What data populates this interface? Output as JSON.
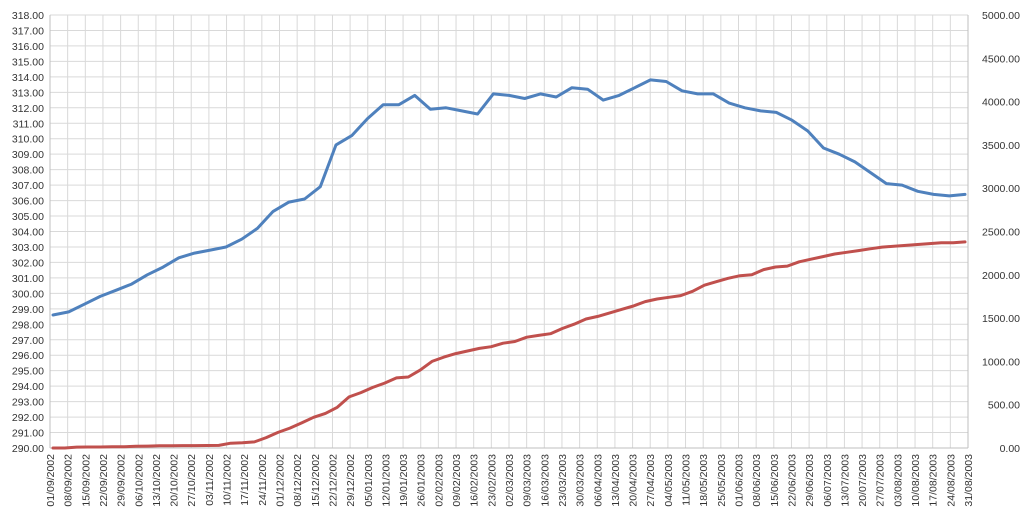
{
  "chart_data": {
    "type": "line",
    "title": "",
    "xlabel": "",
    "ylabel": "",
    "y2label": "",
    "ylim": [
      290,
      318
    ],
    "y2lim": [
      0,
      5000
    ],
    "yticks": [
      "290.00",
      "291.00",
      "292.00",
      "293.00",
      "294.00",
      "295.00",
      "296.00",
      "297.00",
      "298.00",
      "299.00",
      "300.00",
      "301.00",
      "302.00",
      "303.00",
      "304.00",
      "305.00",
      "306.00",
      "307.00",
      "308.00",
      "309.00",
      "310.00",
      "311.00",
      "312.00",
      "313.00",
      "314.00",
      "315.00",
      "316.00",
      "317.00",
      "318.00"
    ],
    "y2ticks": [
      "0.00",
      "500.00",
      "1000.00",
      "1500.00",
      "2000.00",
      "2500.00",
      "3000.00",
      "3500.00",
      "4000.00",
      "4500.00",
      "5000.00"
    ],
    "xticks": [
      "01/09/2002",
      "08/09/2002",
      "15/09/2002",
      "22/09/2002",
      "29/09/2002",
      "06/10/2002",
      "13/10/2002",
      "20/10/2002",
      "27/10/2002",
      "03/11/2002",
      "10/11/2002",
      "17/11/2002",
      "24/11/2002",
      "01/12/2002",
      "08/12/2002",
      "15/12/2002",
      "22/12/2002",
      "29/12/2002",
      "05/01/2003",
      "12/01/2003",
      "19/01/2003",
      "26/01/2003",
      "02/02/2003",
      "09/02/2003",
      "16/02/2003",
      "23/02/2003",
      "02/03/2003",
      "09/03/2003",
      "16/03/2003",
      "23/03/2003",
      "30/03/2003",
      "06/04/2003",
      "13/04/2003",
      "20/04/2003",
      "27/04/2003",
      "04/05/2003",
      "11/05/2003",
      "18/05/2003",
      "25/05/2003",
      "01/06/2003",
      "08/06/2003",
      "15/06/2003",
      "22/06/2003",
      "29/06/2003",
      "06/07/2003",
      "13/07/2003",
      "20/07/2003",
      "27/07/2003",
      "03/08/2003",
      "10/08/2003",
      "17/08/2003",
      "24/08/2003",
      "31/08/2003"
    ],
    "grid": true,
    "legend": "none",
    "series": [
      {
        "axis": "left",
        "color": "#4f81bd",
        "values": [
          298.6,
          298.8,
          299.3,
          299.8,
          300.2,
          300.6,
          301.2,
          301.7,
          302.3,
          302.6,
          302.8,
          303.0,
          303.5,
          304.2,
          305.3,
          305.9,
          306.1,
          306.9,
          309.6,
          310.2,
          311.3,
          312.2,
          312.2,
          312.8,
          311.9,
          312.0,
          311.8,
          311.6,
          312.9,
          312.8,
          312.6,
          312.9,
          312.7,
          313.3,
          313.2,
          312.5,
          312.8,
          313.3,
          313.8,
          313.7,
          313.1,
          312.9,
          312.9,
          312.3,
          312.0,
          311.8,
          311.7,
          311.2,
          310.5,
          309.4,
          309.0,
          308.5,
          307.8,
          307.1,
          307.0,
          306.6,
          306.4,
          306.3,
          306.4
        ]
      },
      {
        "axis": "right",
        "color": "#c0504d",
        "values": [
          0,
          0,
          10,
          12,
          12,
          14,
          15,
          20,
          22,
          25,
          26,
          28,
          28,
          29,
          30,
          55,
          60,
          70,
          120,
          180,
          230,
          290,
          355,
          400,
          470,
          590,
          640,
          700,
          750,
          810,
          820,
          900,
          1000,
          1050,
          1090,
          1120,
          1150,
          1170,
          1210,
          1230,
          1280,
          1300,
          1320,
          1380,
          1430,
          1490,
          1520,
          1560,
          1600,
          1640,
          1690,
          1720,
          1740,
          1760,
          1810,
          1880,
          1920,
          1960,
          1990,
          2000,
          2060,
          2090,
          2100,
          2150,
          2180,
          2210,
          2240,
          2260,
          2280,
          2300,
          2320,
          2330,
          2340,
          2350,
          2360,
          2370,
          2370,
          2380
        ]
      }
    ]
  }
}
